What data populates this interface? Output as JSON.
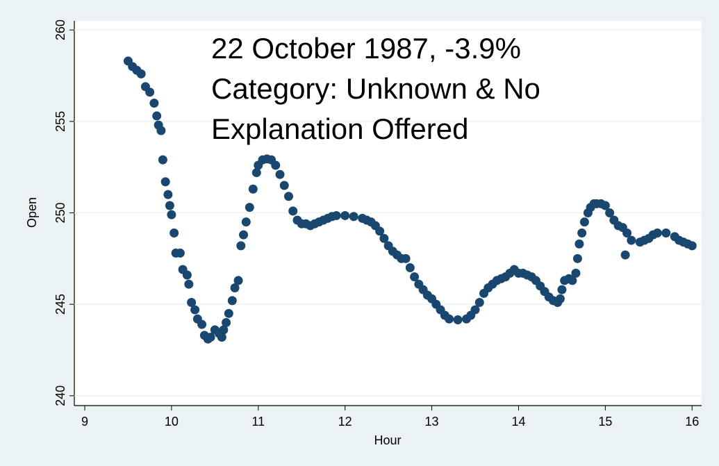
{
  "chart_data": {
    "type": "scatter",
    "annotation": [
      "22 October 1987, -3.9%",
      "Category: Unknown & No",
      "Explanation Offered"
    ],
    "xlabel": "Hour",
    "ylabel": "Open",
    "xlim": [
      8.88,
      16.11
    ],
    "ylim": [
      239.5,
      260.5
    ],
    "xticks": [
      9,
      10,
      11,
      12,
      13,
      14,
      15,
      16
    ],
    "yticks": [
      240,
      245,
      250,
      255,
      260
    ],
    "grid": true,
    "series": [
      {
        "color": "#1a476f",
        "x": [
          9.5,
          9.55,
          9.6,
          9.65,
          9.7,
          9.75,
          9.8,
          9.83,
          9.85,
          9.88,
          9.9,
          9.93,
          9.96,
          9.98,
          10.0,
          10.03,
          10.05,
          10.1,
          10.13,
          10.18,
          10.2,
          10.23,
          10.27,
          10.3,
          10.35,
          10.38,
          10.42,
          10.45,
          10.5,
          10.55,
          10.58,
          10.6,
          10.63,
          10.66,
          10.7,
          10.73,
          10.77,
          10.8,
          10.83,
          10.86,
          10.9,
          10.94,
          10.98,
          11.0,
          11.05,
          11.1,
          11.15,
          11.2,
          11.25,
          11.3,
          11.35,
          11.4,
          11.45,
          11.5,
          11.55,
          11.6,
          11.65,
          11.7,
          11.75,
          11.8,
          11.85,
          11.9,
          12.0,
          12.1,
          12.2,
          12.25,
          12.3,
          12.35,
          12.4,
          12.45,
          12.5,
          12.55,
          12.6,
          12.65,
          12.7,
          12.75,
          12.8,
          12.85,
          12.9,
          12.95,
          13.0,
          13.05,
          13.1,
          13.15,
          13.2,
          13.3,
          13.4,
          13.45,
          13.5,
          13.55,
          13.6,
          13.65,
          13.7,
          13.75,
          13.8,
          13.85,
          13.9,
          13.95,
          14.0,
          14.05,
          14.1,
          14.15,
          14.2,
          14.25,
          14.3,
          14.35,
          14.4,
          14.45,
          14.48,
          14.5,
          14.53,
          14.58,
          14.62,
          14.66,
          14.68,
          14.7,
          14.73,
          14.76,
          14.8,
          14.83,
          14.87,
          14.9,
          14.95,
          15.0,
          15.05,
          15.1,
          15.15,
          15.2,
          15.23,
          15.25,
          15.3,
          15.4,
          15.45,
          15.5,
          15.55,
          15.6,
          15.7,
          15.8,
          15.85,
          15.9,
          15.95,
          16.0
        ],
        "values": [
          258.3,
          258.0,
          257.8,
          257.6,
          256.9,
          256.6,
          256.0,
          255.3,
          254.8,
          254.5,
          252.9,
          251.7,
          251.0,
          250.4,
          249.9,
          248.9,
          247.8,
          247.8,
          246.9,
          246.6,
          246.1,
          245.1,
          244.7,
          244.2,
          243.9,
          243.3,
          243.1,
          243.2,
          243.6,
          243.4,
          243.2,
          243.6,
          244.0,
          244.5,
          245.2,
          245.9,
          246.3,
          248.2,
          248.8,
          249.5,
          250.3,
          251.3,
          252.2,
          252.6,
          252.9,
          252.95,
          252.9,
          252.6,
          252.1,
          251.5,
          250.9,
          250.1,
          249.6,
          249.4,
          249.4,
          249.3,
          249.4,
          249.5,
          249.6,
          249.7,
          249.8,
          249.85,
          249.85,
          249.8,
          249.7,
          249.6,
          249.5,
          249.3,
          249.0,
          248.6,
          248.2,
          247.9,
          247.7,
          247.5,
          247.5,
          247.0,
          246.5,
          246.1,
          245.8,
          245.5,
          245.3,
          245.0,
          244.7,
          244.4,
          244.2,
          244.15,
          244.2,
          244.4,
          244.7,
          245.1,
          245.6,
          245.9,
          246.1,
          246.3,
          246.4,
          246.5,
          246.7,
          246.9,
          246.7,
          246.7,
          246.6,
          246.5,
          246.3,
          246.0,
          245.7,
          245.4,
          245.2,
          245.1,
          245.3,
          245.8,
          246.3,
          246.4,
          246.3,
          246.7,
          247.5,
          248.3,
          248.9,
          249.5,
          250.0,
          250.3,
          250.5,
          250.5,
          250.5,
          250.4,
          250.0,
          249.6,
          249.3,
          249.2,
          247.7,
          248.9,
          248.5,
          248.4,
          248.5,
          248.6,
          248.8,
          248.9,
          248.9,
          248.7,
          248.5,
          248.4,
          248.3,
          248.2
        ]
      }
    ]
  }
}
